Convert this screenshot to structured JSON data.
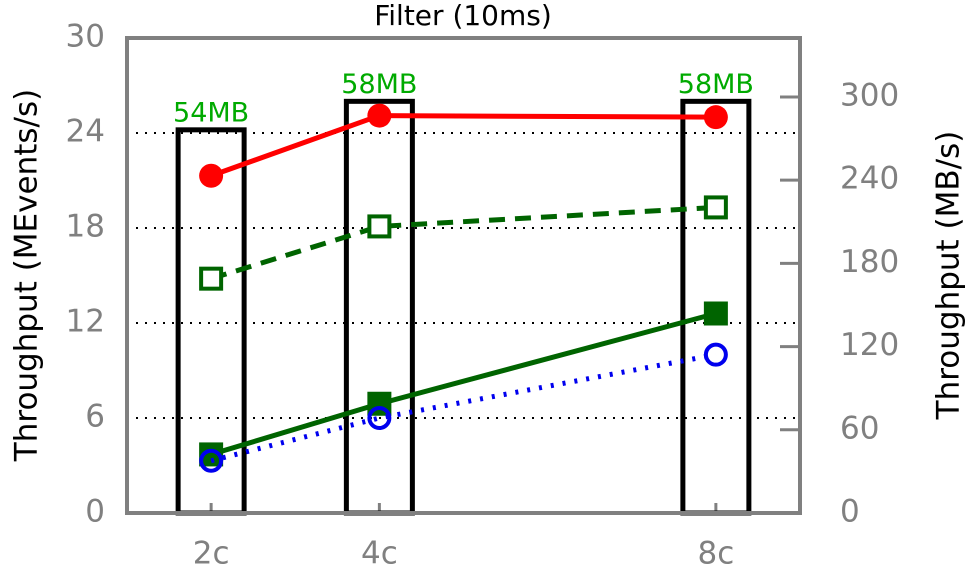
{
  "chart_data": {
    "type": "line",
    "title": "Filter (10ms)",
    "y_label": "Throughput (MEvents/s)",
    "y2_label": "Throughput (MB/s)",
    "x": [
      2,
      4,
      8
    ],
    "xlim": [
      1,
      9
    ],
    "xticks": [
      {
        "value": 2,
        "label": "2c"
      },
      {
        "value": 4,
        "label": "4c"
      },
      {
        "value": 8,
        "label": "8c"
      }
    ],
    "ylim": [
      0,
      30
    ],
    "yticks": [
      0,
      6,
      12,
      18,
      24,
      30
    ],
    "y2lim": [
      0,
      342.5
    ],
    "y2ticks": [
      0,
      60,
      120,
      180,
      240,
      300
    ],
    "grid": true,
    "bars": {
      "values": [
        24.2,
        26,
        26
      ],
      "color": "#000000",
      "annotations": [
        "54MB",
        "58MB",
        "58MB"
      ],
      "annotation_color": "#00aa00"
    },
    "series": [
      {
        "color": "#ff0000",
        "line": "solid",
        "marker": "circle",
        "values": [
          21.3,
          25.1,
          25.0
        ]
      },
      {
        "color": "#006400",
        "line": "dashed",
        "marker": "square-open",
        "values": [
          14.8,
          18.1,
          19.3
        ]
      },
      {
        "color": "#006400",
        "line": "solid",
        "marker": "square",
        "values": [
          3.7,
          6.9,
          12.6
        ]
      },
      {
        "color": "#0000ee",
        "line": "dotted",
        "marker": "circle-open",
        "values": [
          3.3,
          6.0,
          10.0
        ]
      }
    ]
  }
}
